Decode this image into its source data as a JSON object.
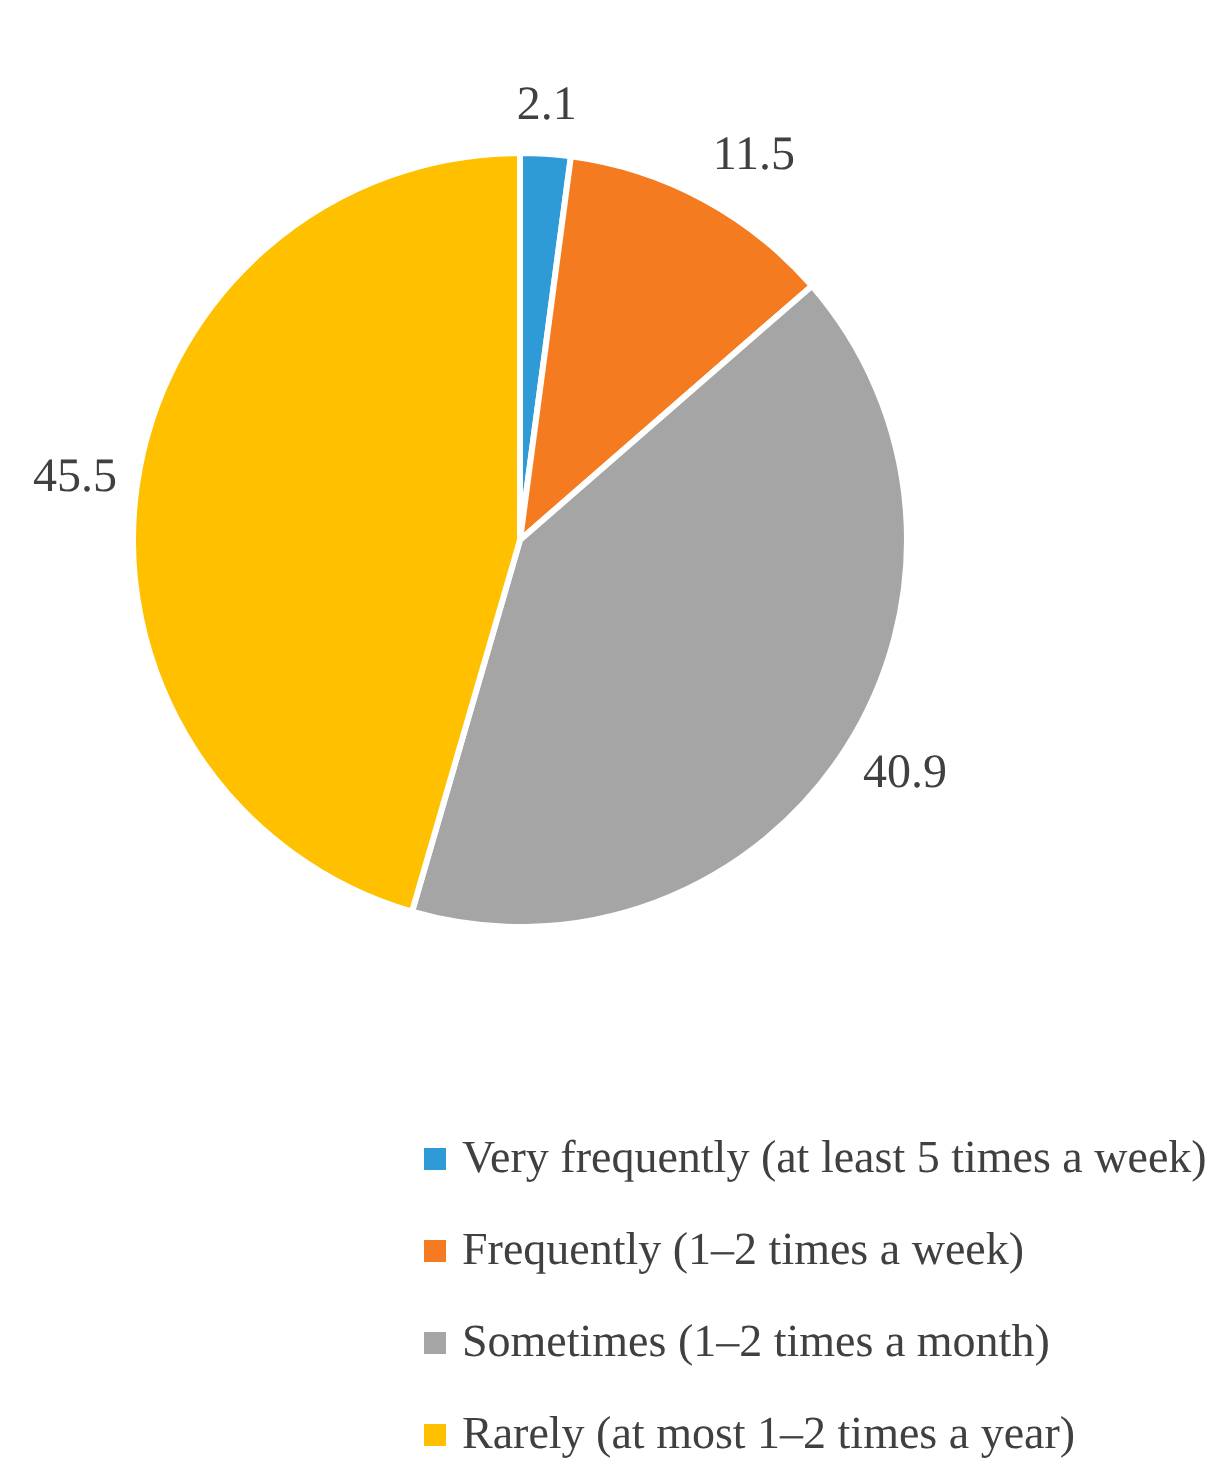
{
  "chart_data": {
    "type": "pie",
    "categories": [
      "Very frequently (at least 5 times a week)",
      "Frequently (1–2 times a week)",
      "Sometimes (1–2 times a month)",
      "Rarely (at most 1–2 times a year)"
    ],
    "values": [
      2.1,
      11.5,
      40.9,
      45.5
    ],
    "colors": [
      "#2e9bd6",
      "#f47b20",
      "#a5a5a5",
      "#ffc000"
    ],
    "data_labels": true,
    "legend": "bottom"
  }
}
